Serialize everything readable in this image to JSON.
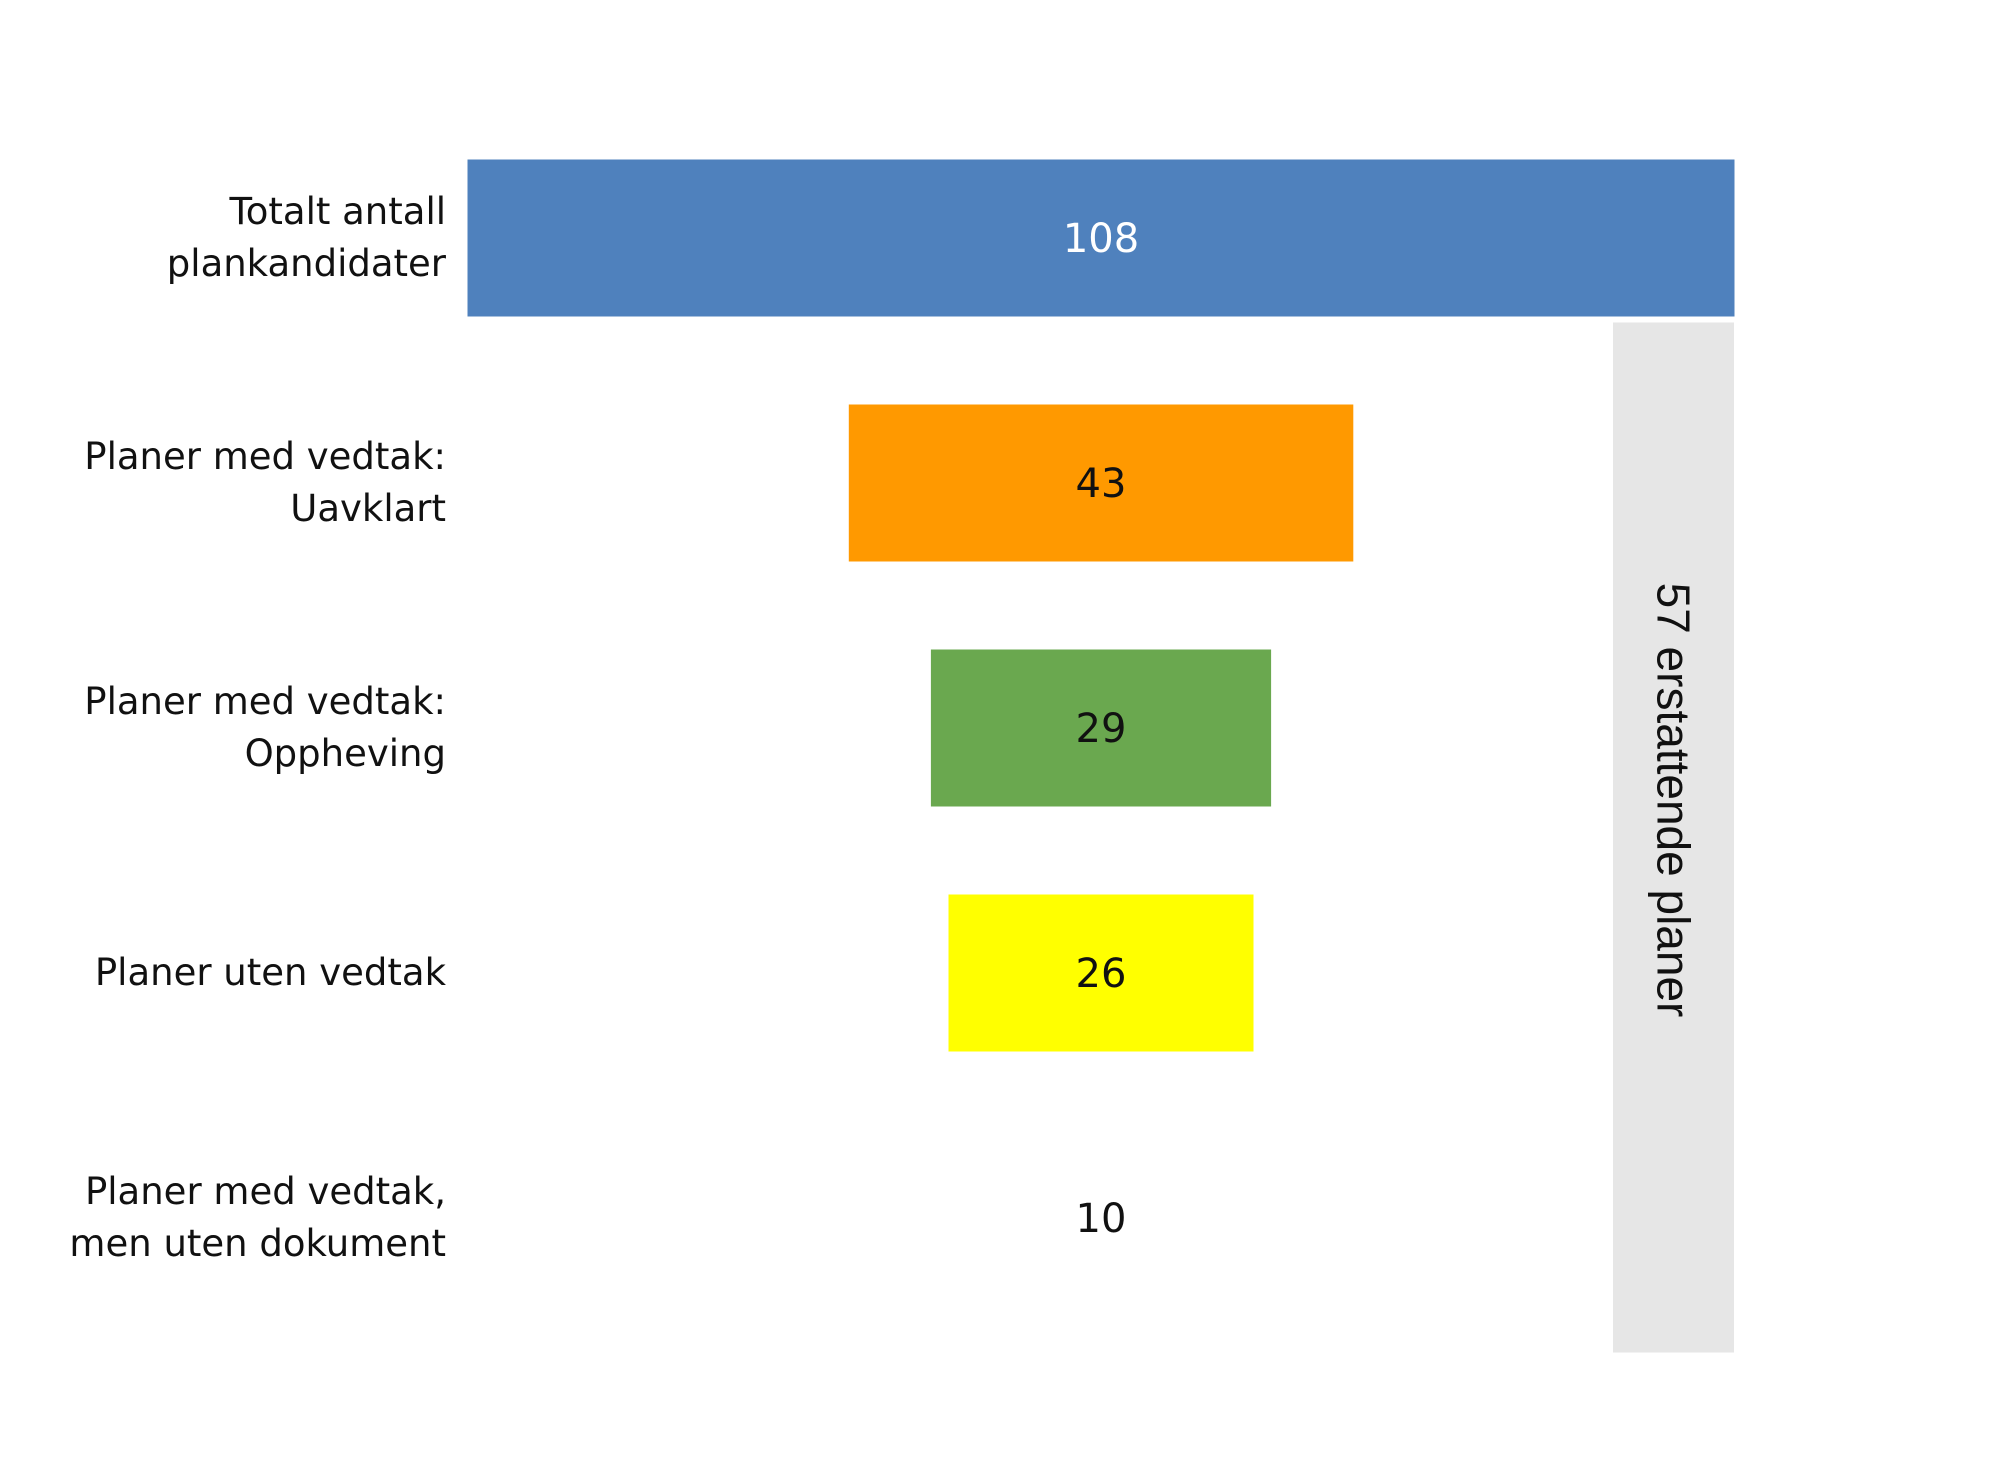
{
  "chart_data": {
    "type": "bar",
    "orientation": "horizontal",
    "alignment": "centered",
    "categories": [
      "Totalt antall plankandidater",
      "Planer med vedtak: Uavklart",
      "Planer med vedtak: Oppheving",
      "Planer uten vedtak",
      "Planer med vedtak, men uten dokument"
    ],
    "category_label_lines": [
      [
        "Totalt antall",
        "plankandidater"
      ],
      [
        "Planer med vedtak:",
        "Uavklart"
      ],
      [
        "Planer med vedtak:",
        "Oppheving"
      ],
      [
        "Planer uten vedtak"
      ],
      [
        "Planer med vedtak,",
        "men uten dokument"
      ]
    ],
    "values": [
      108,
      43,
      29,
      26,
      10
    ],
    "value_labels": [
      "108",
      "43",
      "29",
      "26",
      "10"
    ],
    "colors": [
      "#4f81bd",
      "#ff9900",
      "#6aa84f",
      "#ffff00",
      "#ffffff"
    ],
    "value_label_colors": [
      "#ffffff",
      "#111111",
      "#111111",
      "#111111",
      "#111111"
    ],
    "bracket": {
      "label": "57 erstattende planer",
      "spans_categories": [
        1,
        2,
        3,
        4
      ],
      "color": "#e6e6e6"
    },
    "grid": false,
    "legend": "none"
  }
}
